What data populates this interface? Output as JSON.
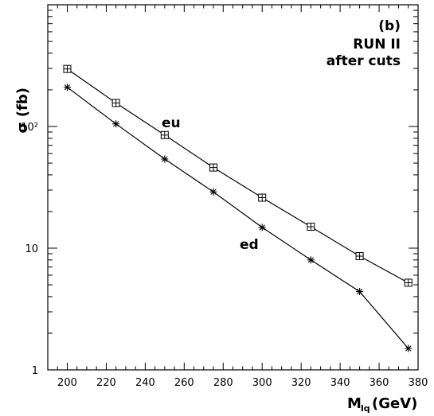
{
  "chart_data": {
    "type": "line",
    "annotations": [
      "(b)",
      "RUN II",
      "after cuts"
    ],
    "xlabel": "M",
    "xlabel_sub": "lq",
    "xlabel_unit": "(GeV)",
    "ylabel": "σ (fb)",
    "yscale": "log",
    "xlim": [
      190,
      380
    ],
    "ylim": [
      1,
      1000
    ],
    "x_ticks": [
      200,
      220,
      240,
      260,
      280,
      300,
      320,
      340,
      360,
      380
    ],
    "y_ticks": [
      {
        "value": 1,
        "label": "1"
      },
      {
        "value": 10,
        "label": "10"
      },
      {
        "value": 100,
        "label": "10²"
      }
    ],
    "grid": false,
    "series": [
      {
        "name": "eu",
        "marker": "square-cross",
        "x": [
          200,
          225,
          250,
          275,
          300,
          325,
          350,
          375
        ],
        "y": [
          297,
          156,
          85,
          46,
          26,
          15,
          8.6,
          5.2
        ]
      },
      {
        "name": "ed",
        "marker": "asterisk",
        "x": [
          200,
          225,
          250,
          275,
          300,
          325,
          350,
          375
        ],
        "y": [
          210,
          105,
          54,
          29,
          14.8,
          8.0,
          4.4,
          1.5
        ]
      }
    ]
  }
}
